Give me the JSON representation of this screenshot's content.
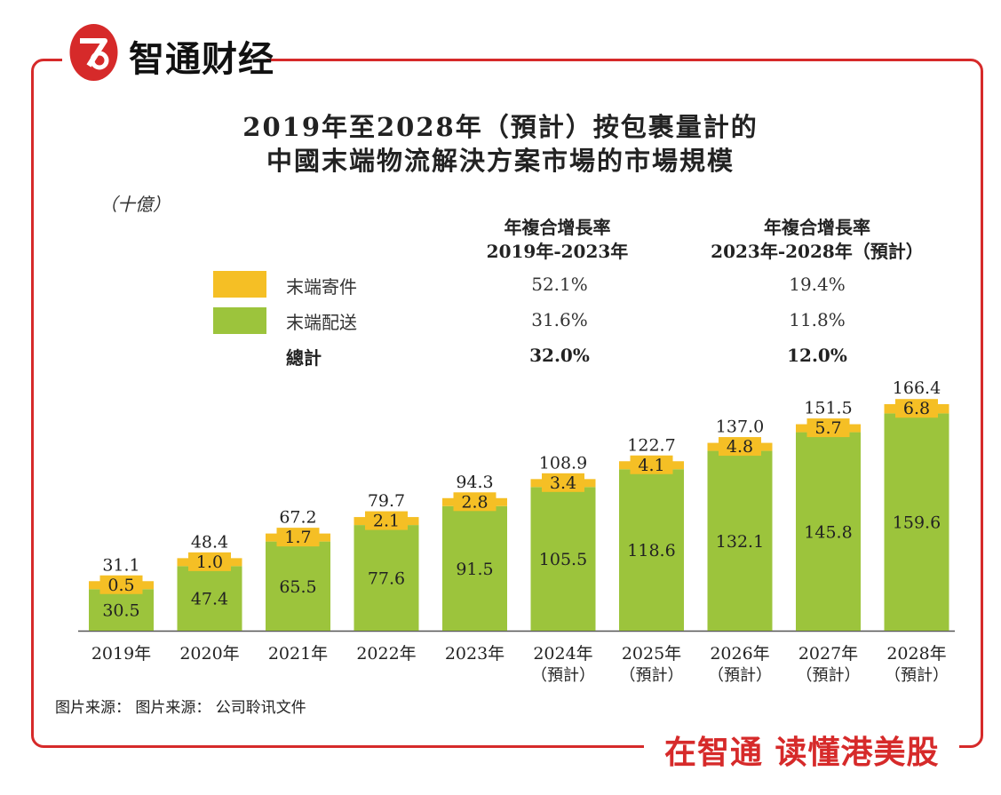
{
  "brand": {
    "name": "智通财经",
    "slogan": "在智通 读懂港美股",
    "accent": "#d62a2a"
  },
  "chart_data": {
    "type": "bar",
    "stacked": true,
    "title_line1": "2019年至2028年（預計）按包裹量計的",
    "title_line2": "中國末端物流解決方案市場的市場規模",
    "unit": "（十億）",
    "categories": [
      "2019年",
      "2020年",
      "2021年",
      "2022年",
      "2023年",
      "2024年",
      "2025年",
      "2026年",
      "2027年",
      "2028年"
    ],
    "category_notes": [
      "",
      "",
      "",
      "",
      "",
      "（預計）",
      "（預計）",
      "（預計）",
      "（預計）",
      "（預計）"
    ],
    "series": [
      {
        "name": "末端配送",
        "color": "#9cc43c",
        "values": [
          30.5,
          47.4,
          65.5,
          77.6,
          91.5,
          105.5,
          118.6,
          132.1,
          145.8,
          159.6
        ]
      },
      {
        "name": "末端寄件",
        "color": "#f5bf25",
        "values": [
          0.5,
          1.0,
          1.7,
          2.1,
          2.8,
          3.4,
          4.1,
          4.8,
          5.7,
          6.8
        ]
      }
    ],
    "series_labels": {
      "delivery": [
        "30.5",
        "47.4",
        "65.5",
        "77.6",
        "91.5",
        "105.5",
        "118.6",
        "132.1",
        "145.8",
        "159.6"
      ],
      "pickup": [
        "0.5",
        "1.0",
        "1.7",
        "2.1",
        "2.8",
        "3.4",
        "4.1",
        "4.8",
        "5.7",
        "6.8"
      ]
    },
    "totals": [
      31.1,
      48.4,
      67.2,
      79.7,
      94.3,
      108.9,
      122.7,
      137.0,
      151.5,
      166.4
    ],
    "total_labels": [
      "31.1",
      "48.4",
      "67.2",
      "79.7",
      "94.3",
      "108.9",
      "122.7",
      "137.0",
      "151.5",
      "166.4"
    ],
    "ylim": [
      0,
      166.4
    ],
    "cagr_table": {
      "header1": [
        "年複合增長率",
        "2019年-2023年"
      ],
      "header2": [
        "年複合增長率",
        "2023年-2028年（預計）"
      ],
      "rows": [
        {
          "label": "末端寄件",
          "v1": "52.1%",
          "v2": "19.4%"
        },
        {
          "label": "末端配送",
          "v1": "31.6%",
          "v2": "11.8%"
        },
        {
          "label": "總計",
          "v1": "32.0%",
          "v2": "12.0%"
        }
      ]
    },
    "source": "图片来源：  图片来源：  公司聆讯文件"
  }
}
